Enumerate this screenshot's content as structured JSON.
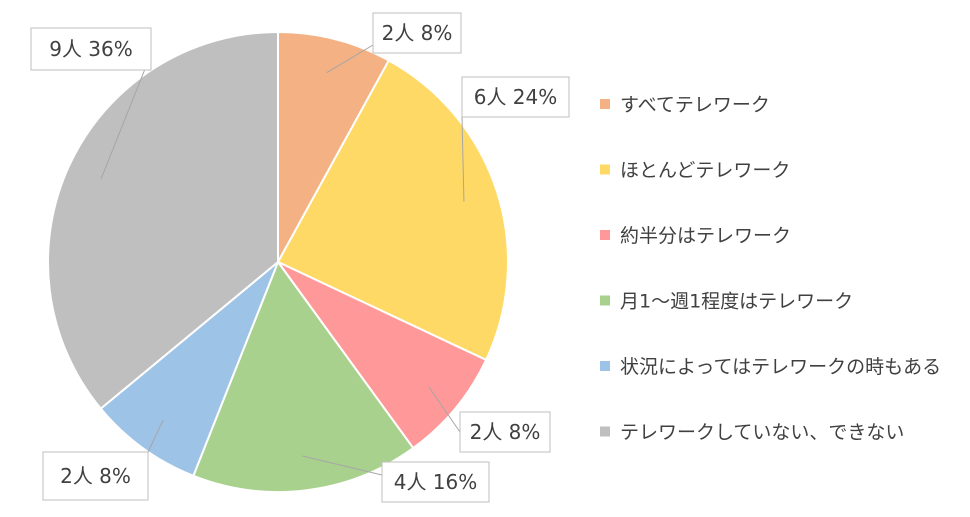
{
  "chart_data": {
    "type": "pie",
    "title": "",
    "unit": "人",
    "start_angle_deg": 0,
    "direction": "clockwise",
    "legend_position": "right",
    "slices": [
      {
        "label": "すべてテレワーク",
        "count": 2,
        "percent": 8,
        "data_label": "2人 8%",
        "color": "#F4B183"
      },
      {
        "label": "ほとんどテレワーク",
        "count": 6,
        "percent": 24,
        "data_label": "6人 24%",
        "color": "#FFD966"
      },
      {
        "label": "約半分はテレワーク",
        "count": 2,
        "percent": 8,
        "data_label": "2人 8%",
        "color": "#FF9999"
      },
      {
        "label": "月1〜週1程度はテレワーク",
        "count": 4,
        "percent": 16,
        "data_label": "4人 16%",
        "color": "#A9D18E"
      },
      {
        "label": "状況によってはテレワークの時もある",
        "count": 2,
        "percent": 8,
        "data_label": "2人 8%",
        "color": "#9DC3E6"
      },
      {
        "label": "テレワークしていない、できない",
        "count": 9,
        "percent": 36,
        "data_label": "9人 36%",
        "color": "#BFBFBF"
      }
    ]
  }
}
